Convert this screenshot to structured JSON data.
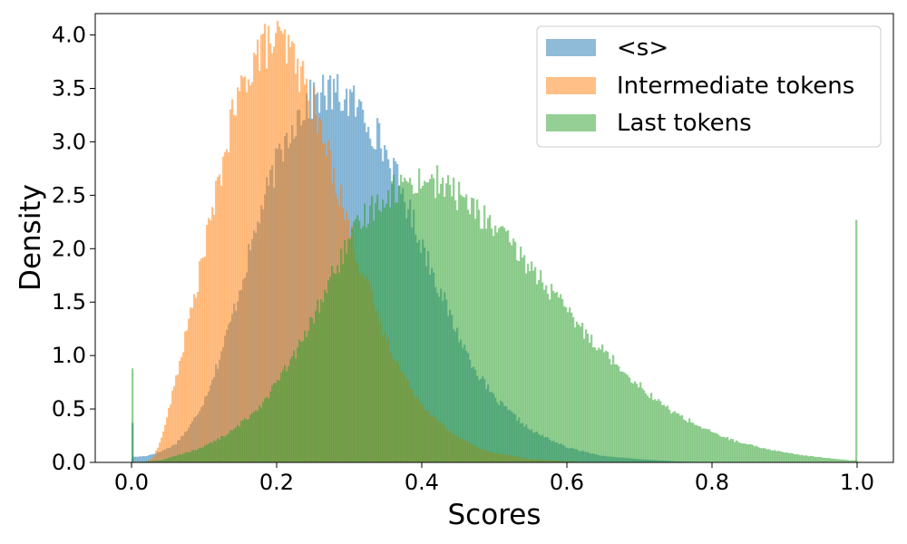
{
  "chart_data": {
    "type": "histogram",
    "xlabel": "Scores",
    "ylabel": "Density",
    "xlim": [
      -0.05,
      1.05
    ],
    "ylim": [
      0.0,
      4.2
    ],
    "xticks": [
      0.0,
      0.2,
      0.4,
      0.6,
      0.8,
      1.0
    ],
    "xtick_labels": [
      "0.0",
      "0.2",
      "0.4",
      "0.6",
      "0.8",
      "1.0"
    ],
    "yticks": [
      0.0,
      0.5,
      1.0,
      1.5,
      2.0,
      2.5,
      3.0,
      3.5,
      4.0
    ],
    "ytick_labels": [
      "0.0",
      "0.5",
      "1.0",
      "1.5",
      "2.0",
      "2.5",
      "3.0",
      "3.5",
      "4.0"
    ],
    "grid": false,
    "legend_position": "top-right",
    "bin_width": 0.0025,
    "series": [
      {
        "name": "<s>",
        "color": "#1f77b4",
        "opacity": 0.5,
        "density_profile": {
          "x": [
            0.0,
            0.02,
            0.04,
            0.06,
            0.08,
            0.1,
            0.12,
            0.14,
            0.16,
            0.18,
            0.2,
            0.22,
            0.24,
            0.26,
            0.28,
            0.3,
            0.32,
            0.34,
            0.36,
            0.38,
            0.4,
            0.42,
            0.44,
            0.46,
            0.48,
            0.5,
            0.55,
            0.6,
            0.65,
            0.7,
            0.75,
            0.8,
            1.0
          ],
          "y": [
            0.05,
            0.06,
            0.1,
            0.17,
            0.33,
            0.58,
            0.95,
            1.4,
            1.9,
            2.4,
            2.8,
            3.15,
            3.35,
            3.45,
            3.45,
            3.4,
            3.25,
            3.05,
            2.75,
            2.4,
            2.05,
            1.7,
            1.35,
            1.05,
            0.8,
            0.6,
            0.3,
            0.14,
            0.06,
            0.03,
            0.01,
            0.0,
            0.0
          ]
        },
        "spikes": [
          {
            "x": 0.0,
            "y": 0.37
          }
        ]
      },
      {
        "name": "Intermediate tokens",
        "color": "#ff7f0e",
        "opacity": 0.5,
        "density_profile": {
          "x": [
            0.0,
            0.02,
            0.03,
            0.04,
            0.05,
            0.06,
            0.07,
            0.08,
            0.09,
            0.1,
            0.11,
            0.12,
            0.13,
            0.14,
            0.15,
            0.16,
            0.17,
            0.18,
            0.19,
            0.2,
            0.21,
            0.22,
            0.23,
            0.24,
            0.25,
            0.26,
            0.27,
            0.28,
            0.29,
            0.3,
            0.31,
            0.32,
            0.33,
            0.34,
            0.35,
            0.36,
            0.38,
            0.4,
            0.42,
            0.44,
            0.46,
            0.48,
            0.5,
            0.55,
            0.6,
            0.65,
            0.7,
            0.75,
            1.0
          ],
          "y": [
            0.0,
            0.0,
            0.05,
            0.2,
            0.45,
            0.75,
            1.05,
            1.35,
            1.65,
            2.0,
            2.3,
            2.6,
            2.95,
            3.25,
            3.45,
            3.65,
            3.8,
            3.88,
            3.92,
            3.95,
            3.9,
            3.82,
            3.7,
            3.5,
            3.35,
            3.1,
            2.9,
            2.68,
            2.45,
            2.2,
            1.95,
            1.75,
            1.55,
            1.35,
            1.18,
            1.02,
            0.75,
            0.55,
            0.4,
            0.28,
            0.2,
            0.13,
            0.09,
            0.03,
            0.01,
            0.0,
            0.0,
            0.0,
            0.0
          ]
        },
        "spikes": []
      },
      {
        "name": "Last tokens",
        "color": "#2ca02c",
        "opacity": 0.5,
        "density_profile": {
          "x": [
            0.0,
            0.04,
            0.06,
            0.08,
            0.1,
            0.12,
            0.14,
            0.16,
            0.18,
            0.2,
            0.22,
            0.24,
            0.26,
            0.28,
            0.3,
            0.32,
            0.34,
            0.36,
            0.38,
            0.4,
            0.42,
            0.44,
            0.46,
            0.48,
            0.5,
            0.52,
            0.54,
            0.56,
            0.58,
            0.6,
            0.62,
            0.64,
            0.66,
            0.68,
            0.7,
            0.72,
            0.74,
            0.76,
            0.78,
            0.8,
            0.84,
            0.88,
            0.92,
            0.96,
            0.99
          ],
          "y": [
            0.0,
            0.02,
            0.06,
            0.1,
            0.15,
            0.22,
            0.3,
            0.42,
            0.55,
            0.75,
            0.95,
            1.2,
            1.5,
            1.8,
            2.05,
            2.3,
            2.45,
            2.55,
            2.62,
            2.65,
            2.63,
            2.55,
            2.45,
            2.32,
            2.2,
            2.05,
            1.9,
            1.75,
            1.58,
            1.42,
            1.25,
            1.12,
            0.98,
            0.85,
            0.72,
            0.6,
            0.5,
            0.42,
            0.35,
            0.28,
            0.18,
            0.12,
            0.07,
            0.04,
            0.02
          ]
        },
        "spikes": [
          {
            "x": 0.0,
            "y": 0.88
          },
          {
            "x": 1.0,
            "y": 2.27
          }
        ]
      }
    ]
  }
}
